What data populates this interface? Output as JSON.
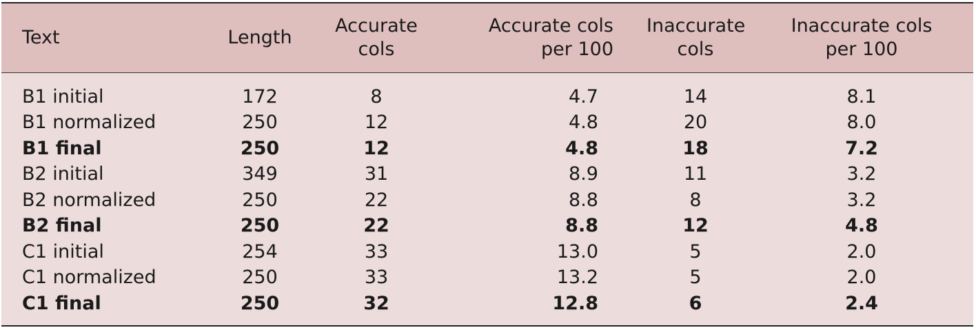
{
  "table": {
    "headers": [
      [
        "Text"
      ],
      [
        "Length"
      ],
      [
        "Accurate cols"
      ],
      [
        "Accurate cols",
        "per 100"
      ],
      [
        "Inaccurate",
        "cols"
      ],
      [
        "Inaccurate cols",
        "per 100"
      ]
    ],
    "rows": [
      {
        "bold": false,
        "cells": [
          "B1 initial",
          "172",
          "8",
          "4.7",
          "14",
          "8.1"
        ]
      },
      {
        "bold": false,
        "cells": [
          "B1 normalized",
          "250",
          "12",
          "4.8",
          "20",
          "8.0"
        ]
      },
      {
        "bold": true,
        "cells": [
          "B1 final",
          "250",
          "12",
          "4.8",
          "18",
          "7.2"
        ]
      },
      {
        "bold": false,
        "cells": [
          "B2 initial",
          "349",
          "31",
          "8.9",
          "11",
          "3.2"
        ]
      },
      {
        "bold": false,
        "cells": [
          "B2 normalized",
          "250",
          "22",
          "8.8",
          "8",
          "3.2"
        ]
      },
      {
        "bold": true,
        "cells": [
          "B2 final",
          "250",
          "22",
          "8.8",
          "12",
          "4.8"
        ]
      },
      {
        "bold": false,
        "cells": [
          "C1 initial",
          "254",
          "33",
          "13.0",
          "5",
          "2.0"
        ]
      },
      {
        "bold": false,
        "cells": [
          "C1 normalized",
          "250",
          "33",
          "13.2",
          "5",
          "2.0"
        ]
      },
      {
        "bold": true,
        "cells": [
          "C1 final",
          "250",
          "32",
          "12.8",
          "6",
          "2.4"
        ]
      }
    ]
  },
  "colors": {
    "header_bg": "#dfbebe",
    "body_bg": "#ecdcdc",
    "rule": "#222222"
  }
}
